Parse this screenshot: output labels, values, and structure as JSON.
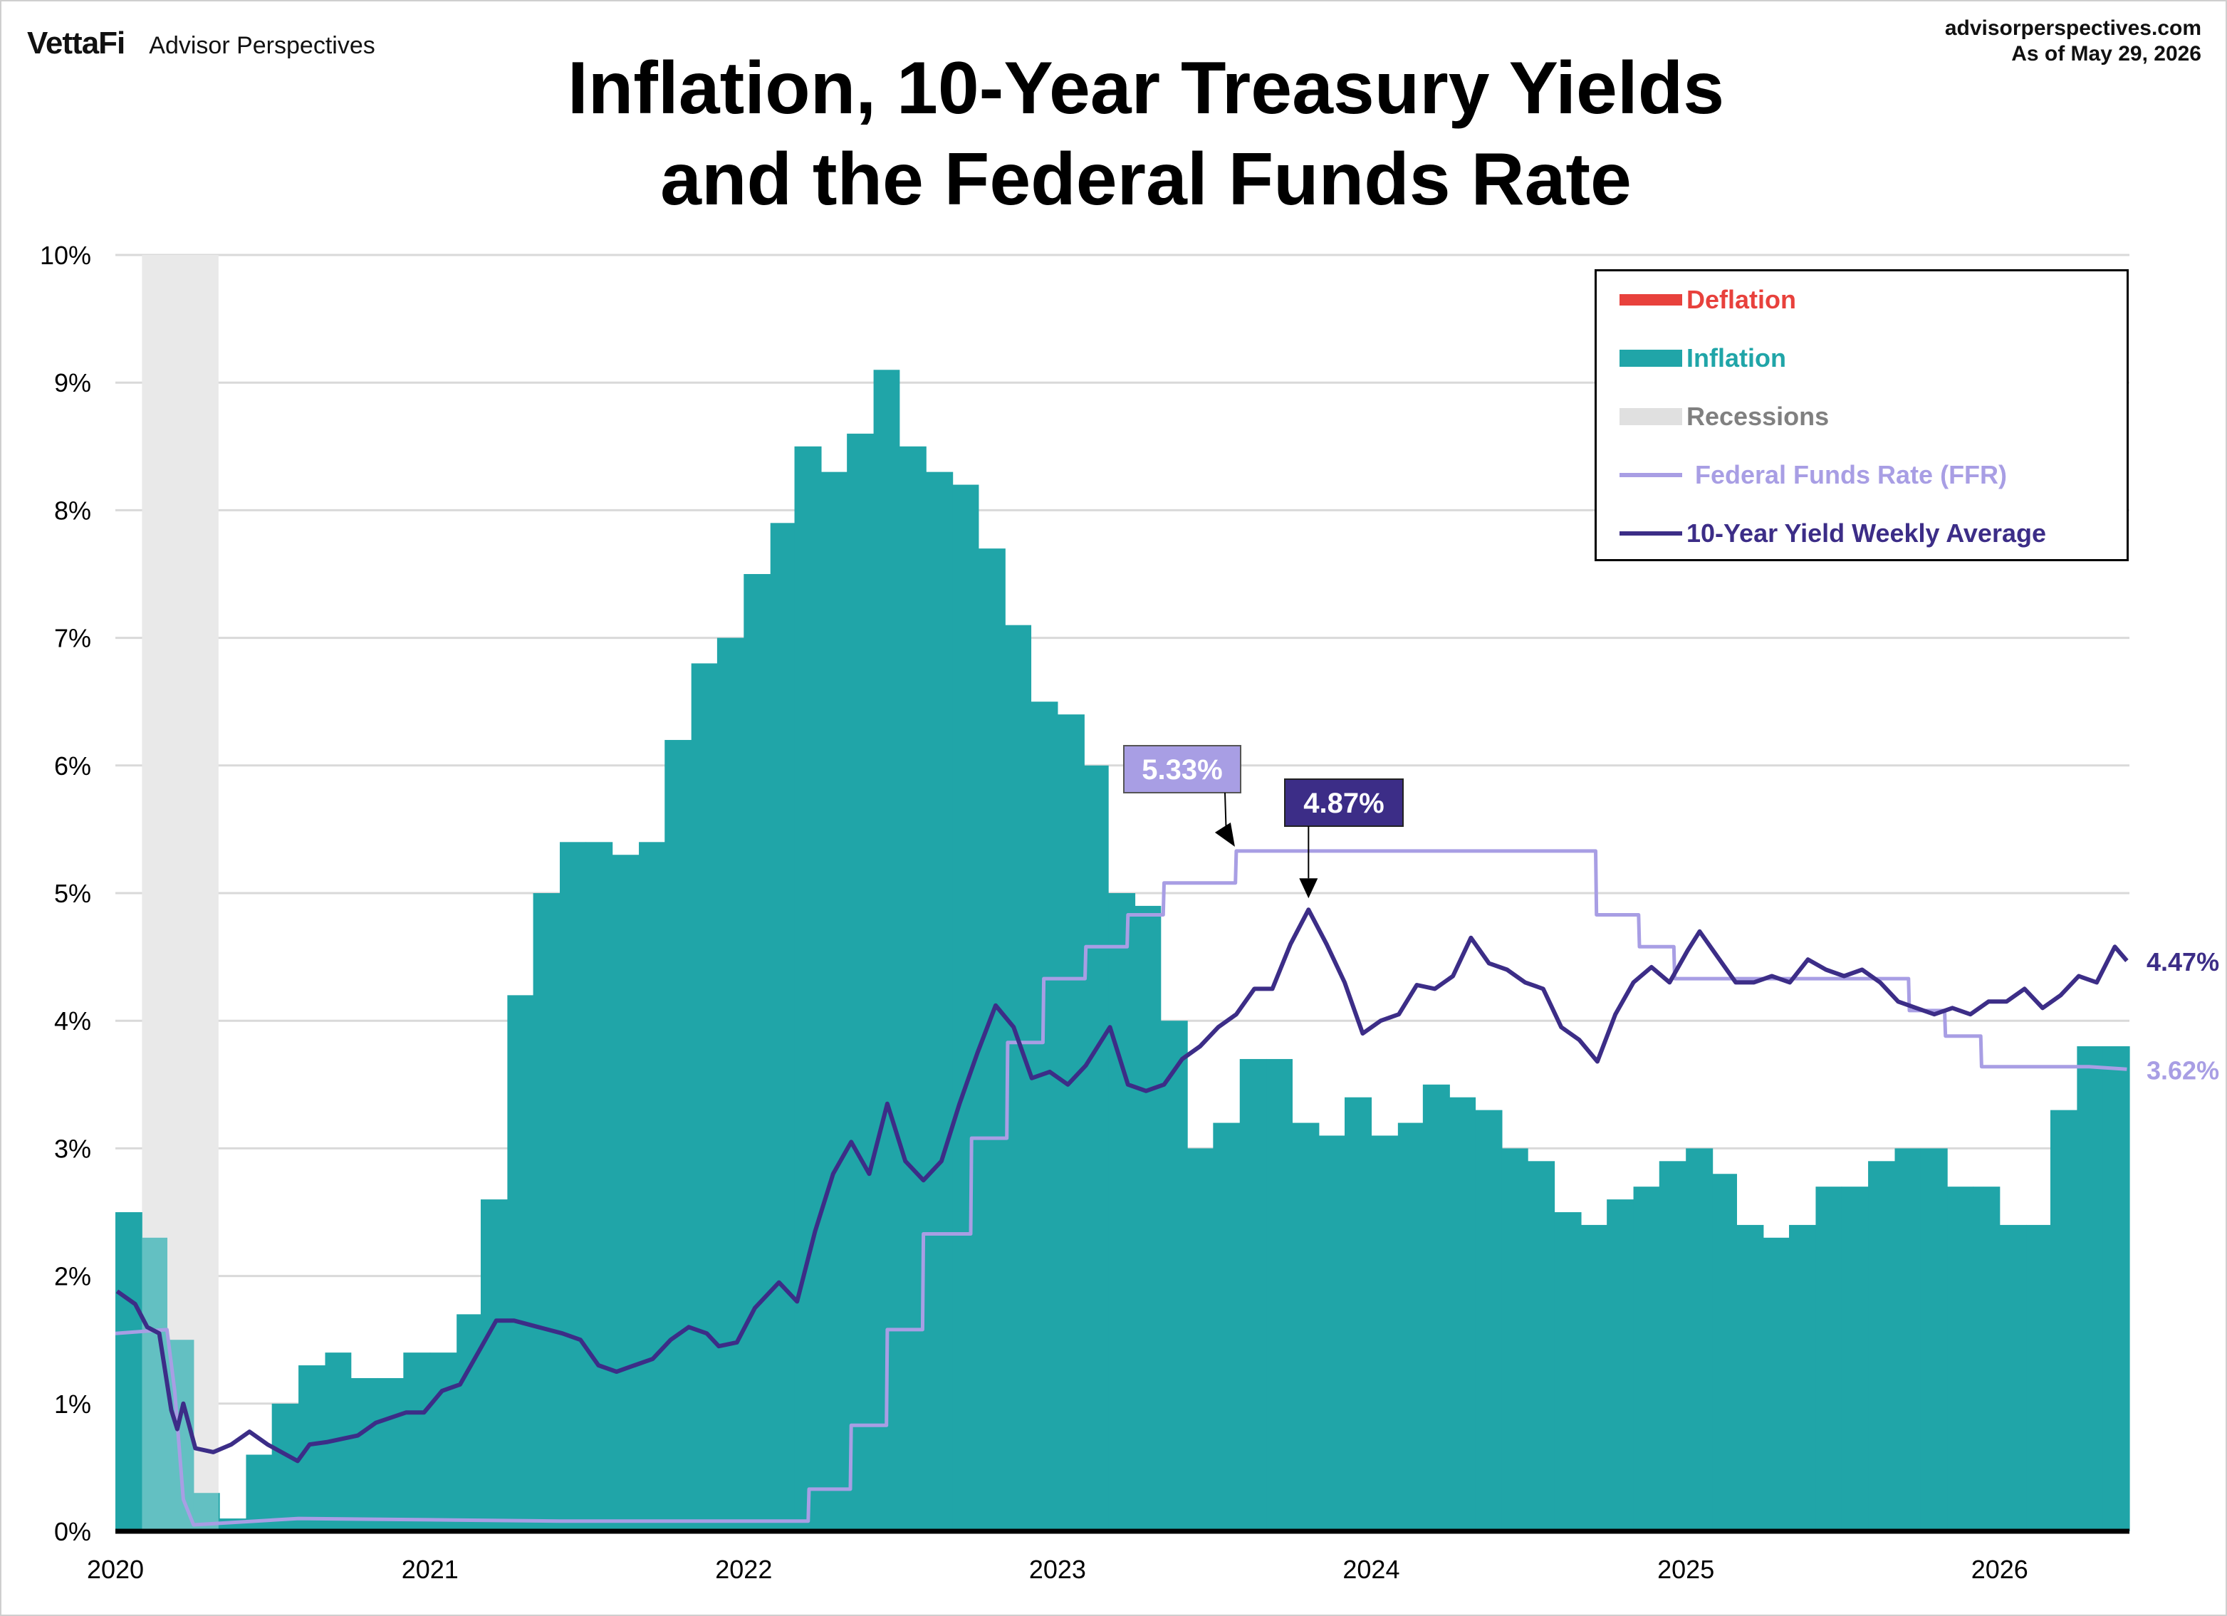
{
  "header": {
    "brand_logo": "VettaFi",
    "brand_name": "Advisor Perspectives",
    "source_url": "advisorperspectives.com",
    "as_of": "As of May 29, 2026",
    "title_line1": "Inflation, 10-Year Treasury Yields",
    "title_line2": "and the Federal Funds Rate"
  },
  "colors": {
    "deflation": "#e8413c",
    "inflation": "#20a5a8",
    "recession": "#e0e0e0",
    "ffr": "#a89ee4",
    "yield": "#3c2d87",
    "grid": "#d9d9d9",
    "axis": "#000000"
  },
  "legend": {
    "deflation": "Deflation",
    "inflation": "Inflation",
    "recessions": "Recessions",
    "ffr": "Federal Funds Rate (FFR)",
    "yield": "10-Year Yield Weekly Average"
  },
  "chart_data": {
    "type": "area",
    "title": "Inflation, 10-Year Treasury Yields and the Federal Funds Rate",
    "x_range": [
      "2020-01-01",
      "2026-06-01"
    ],
    "x_tick_labels": [
      "2020",
      "2021",
      "2022",
      "2023",
      "2024",
      "2025",
      "2026"
    ],
    "ylim": [
      0,
      10
    ],
    "y_tick_labels": [
      "0%",
      "1%",
      "2%",
      "3%",
      "4%",
      "5%",
      "6%",
      "7%",
      "8%",
      "9%",
      "10%"
    ],
    "grid": true,
    "legend_position": "top-right",
    "recessions": [
      [
        "2020-02-01",
        "2020-04-30"
      ]
    ],
    "inflation": {
      "name": "Inflation",
      "monthly_from": "2020-01",
      "values": [
        2.5,
        2.3,
        1.5,
        0.3,
        0.1,
        0.6,
        1.0,
        1.3,
        1.4,
        1.2,
        1.2,
        1.4,
        1.4,
        1.7,
        2.6,
        4.2,
        5.0,
        5.4,
        5.4,
        5.3,
        5.4,
        6.2,
        6.8,
        7.0,
        7.5,
        7.9,
        8.5,
        8.3,
        8.6,
        9.1,
        8.5,
        8.3,
        8.2,
        7.7,
        7.1,
        6.5,
        6.4,
        6.0,
        5.0,
        4.9,
        4.0,
        3.0,
        3.2,
        3.7,
        3.7,
        3.2,
        3.1,
        3.4,
        3.1,
        3.2,
        3.5,
        3.4,
        3.3,
        3.0,
        2.9,
        2.5,
        2.4,
        2.6,
        2.7,
        2.9,
        3.0,
        2.8,
        2.4,
        2.3,
        2.4,
        2.7,
        2.7,
        2.9,
        3.0,
        3.0,
        2.7,
        2.7,
        2.4,
        2.4,
        3.3,
        3.8,
        3.8
      ]
    },
    "ffr": {
      "name": "Federal Funds Rate (FFR)",
      "points": [
        [
          "2020-01-01",
          1.55
        ],
        [
          "2020-03-01",
          1.58
        ],
        [
          "2020-03-10",
          1.1
        ],
        [
          "2020-03-20",
          0.25
        ],
        [
          "2020-04-01",
          0.05
        ],
        [
          "2020-08-01",
          0.1
        ],
        [
          "2021-01-01",
          0.09
        ],
        [
          "2021-06-01",
          0.08
        ],
        [
          "2022-03-17",
          0.08
        ],
        [
          "2022-03-18",
          0.33
        ],
        [
          "2022-05-05",
          0.33
        ],
        [
          "2022-05-06",
          0.83
        ],
        [
          "2022-06-16",
          0.83
        ],
        [
          "2022-06-17",
          1.58
        ],
        [
          "2022-07-28",
          1.58
        ],
        [
          "2022-07-29",
          2.33
        ],
        [
          "2022-09-22",
          2.33
        ],
        [
          "2022-09-23",
          3.08
        ],
        [
          "2022-11-03",
          3.08
        ],
        [
          "2022-11-04",
          3.83
        ],
        [
          "2022-12-15",
          3.83
        ],
        [
          "2022-12-16",
          4.33
        ],
        [
          "2023-02-02",
          4.33
        ],
        [
          "2023-02-03",
          4.58
        ],
        [
          "2023-03-23",
          4.58
        ],
        [
          "2023-03-24",
          4.83
        ],
        [
          "2023-05-04",
          4.83
        ],
        [
          "2023-05-05",
          5.08
        ],
        [
          "2023-07-27",
          5.08
        ],
        [
          "2023-07-28",
          5.33
        ],
        [
          "2024-09-18",
          5.33
        ],
        [
          "2024-09-19",
          4.83
        ],
        [
          "2024-11-07",
          4.83
        ],
        [
          "2024-11-08",
          4.58
        ],
        [
          "2024-12-18",
          4.58
        ],
        [
          "2024-12-19",
          4.33
        ],
        [
          "2025-09-17",
          4.33
        ],
        [
          "2025-09-18",
          4.08
        ],
        [
          "2025-10-29",
          4.08
        ],
        [
          "2025-10-30",
          3.88
        ],
        [
          "2025-12-10",
          3.88
        ],
        [
          "2025-12-11",
          3.64
        ],
        [
          "2026-04-15",
          3.64
        ],
        [
          "2026-05-29",
          3.62
        ]
      ]
    },
    "yield": {
      "name": "10-Year Yield Weekly Average",
      "points": [
        [
          "2020-01-03",
          1.88
        ],
        [
          "2020-01-24",
          1.78
        ],
        [
          "2020-02-07",
          1.6
        ],
        [
          "2020-02-21",
          1.55
        ],
        [
          "2020-03-06",
          0.95
        ],
        [
          "2020-03-13",
          0.8
        ],
        [
          "2020-03-20",
          1.0
        ],
        [
          "2020-04-03",
          0.65
        ],
        [
          "2020-04-24",
          0.62
        ],
        [
          "2020-05-15",
          0.68
        ],
        [
          "2020-06-05",
          0.78
        ],
        [
          "2020-06-26",
          0.68
        ],
        [
          "2020-07-31",
          0.55
        ],
        [
          "2020-08-14",
          0.68
        ],
        [
          "2020-09-04",
          0.7
        ],
        [
          "2020-10-09",
          0.75
        ],
        [
          "2020-10-30",
          0.85
        ],
        [
          "2020-12-04",
          0.93
        ],
        [
          "2020-12-25",
          0.93
        ],
        [
          "2021-01-15",
          1.1
        ],
        [
          "2021-02-05",
          1.15
        ],
        [
          "2021-02-26",
          1.4
        ],
        [
          "2021-03-19",
          1.65
        ],
        [
          "2021-04-09",
          1.65
        ],
        [
          "2021-05-07",
          1.6
        ],
        [
          "2021-06-04",
          1.55
        ],
        [
          "2021-06-25",
          1.5
        ],
        [
          "2021-07-16",
          1.3
        ],
        [
          "2021-08-06",
          1.25
        ],
        [
          "2021-08-27",
          1.3
        ],
        [
          "2021-09-17",
          1.35
        ],
        [
          "2021-10-08",
          1.5
        ],
        [
          "2021-10-29",
          1.6
        ],
        [
          "2021-11-19",
          1.55
        ],
        [
          "2021-12-03",
          1.45
        ],
        [
          "2021-12-24",
          1.48
        ],
        [
          "2022-01-14",
          1.75
        ],
        [
          "2022-02-11",
          1.95
        ],
        [
          "2022-03-04",
          1.8
        ],
        [
          "2022-03-25",
          2.35
        ],
        [
          "2022-04-15",
          2.8
        ],
        [
          "2022-05-06",
          3.05
        ],
        [
          "2022-05-27",
          2.8
        ],
        [
          "2022-06-17",
          3.35
        ],
        [
          "2022-07-08",
          2.9
        ],
        [
          "2022-07-29",
          2.75
        ],
        [
          "2022-08-19",
          2.9
        ],
        [
          "2022-09-09",
          3.35
        ],
        [
          "2022-09-30",
          3.75
        ],
        [
          "2022-10-21",
          4.12
        ],
        [
          "2022-11-11",
          3.95
        ],
        [
          "2022-12-02",
          3.55
        ],
        [
          "2022-12-23",
          3.6
        ],
        [
          "2023-01-13",
          3.5
        ],
        [
          "2023-02-03",
          3.65
        ],
        [
          "2023-03-03",
          3.95
        ],
        [
          "2023-03-24",
          3.5
        ],
        [
          "2023-04-14",
          3.45
        ],
        [
          "2023-05-05",
          3.5
        ],
        [
          "2023-05-26",
          3.7
        ],
        [
          "2023-06-16",
          3.8
        ],
        [
          "2023-07-07",
          3.95
        ],
        [
          "2023-07-28",
          4.05
        ],
        [
          "2023-08-18",
          4.25
        ],
        [
          "2023-09-08",
          4.25
        ],
        [
          "2023-09-29",
          4.6
        ],
        [
          "2023-10-20",
          4.87
        ],
        [
          "2023-11-10",
          4.6
        ],
        [
          "2023-12-01",
          4.3
        ],
        [
          "2023-12-22",
          3.9
        ],
        [
          "2024-01-12",
          4.0
        ],
        [
          "2024-02-02",
          4.05
        ],
        [
          "2024-02-23",
          4.28
        ],
        [
          "2024-03-15",
          4.25
        ],
        [
          "2024-04-05",
          4.35
        ],
        [
          "2024-04-26",
          4.65
        ],
        [
          "2024-05-17",
          4.45
        ],
        [
          "2024-06-07",
          4.4
        ],
        [
          "2024-06-28",
          4.3
        ],
        [
          "2024-07-19",
          4.25
        ],
        [
          "2024-08-09",
          3.95
        ],
        [
          "2024-08-30",
          3.85
        ],
        [
          "2024-09-20",
          3.68
        ],
        [
          "2024-10-11",
          4.05
        ],
        [
          "2024-11-01",
          4.3
        ],
        [
          "2024-11-22",
          4.42
        ],
        [
          "2024-12-13",
          4.3
        ],
        [
          "2025-01-03",
          4.55
        ],
        [
          "2025-01-17",
          4.7
        ],
        [
          "2025-02-07",
          4.5
        ],
        [
          "2025-02-28",
          4.3
        ],
        [
          "2025-03-21",
          4.3
        ],
        [
          "2025-04-11",
          4.35
        ],
        [
          "2025-05-02",
          4.3
        ],
        [
          "2025-05-23",
          4.48
        ],
        [
          "2025-06-13",
          4.4
        ],
        [
          "2025-07-04",
          4.35
        ],
        [
          "2025-07-25",
          4.4
        ],
        [
          "2025-08-15",
          4.3
        ],
        [
          "2025-09-05",
          4.15
        ],
        [
          "2025-09-26",
          4.1
        ],
        [
          "2025-10-17",
          4.05
        ],
        [
          "2025-11-07",
          4.1
        ],
        [
          "2025-11-28",
          4.05
        ],
        [
          "2025-12-19",
          4.15
        ],
        [
          "2026-01-09",
          4.15
        ],
        [
          "2026-01-30",
          4.25
        ],
        [
          "2026-02-20",
          4.1
        ],
        [
          "2026-03-13",
          4.2
        ],
        [
          "2026-04-03",
          4.35
        ],
        [
          "2026-04-24",
          4.3
        ],
        [
          "2026-05-15",
          4.58
        ],
        [
          "2026-05-29",
          4.47
        ]
      ]
    },
    "annotations": {
      "ffr_peak": "5.33%",
      "yield_peak": "4.87%",
      "yield_last": "4.47%",
      "ffr_last": "3.62%"
    }
  }
}
